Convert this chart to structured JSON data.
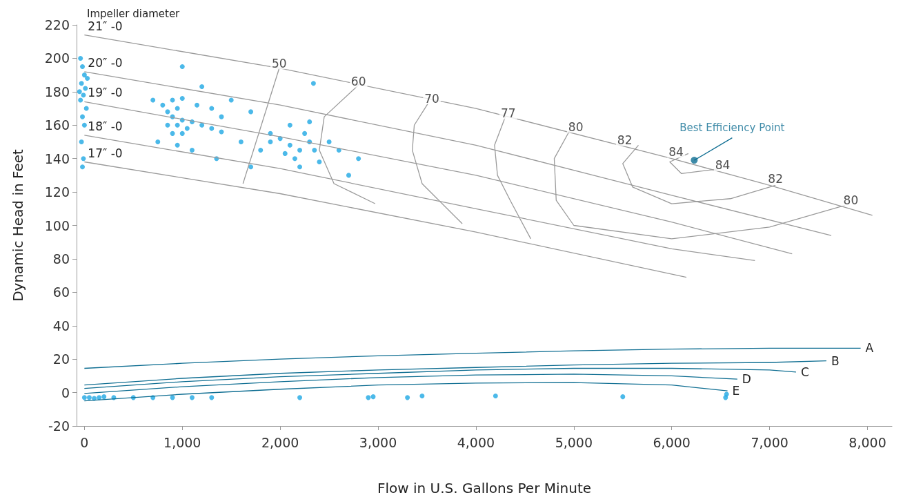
{
  "chart_data": {
    "type": "line",
    "xlabel": "Flow in U.S. Gallons Per Minute",
    "ylabel": "Dynamic Head in Feet",
    "xlim": [
      -80,
      8250
    ],
    "ylim": [
      -20,
      220
    ],
    "xticks": [
      0,
      {
        "value": 1000,
        "label": "1,000"
      },
      {
        "value": 2000,
        "label": "2,000"
      },
      {
        "value": 3000,
        "label": "3,000"
      },
      {
        "value": 4000,
        "label": "4,000"
      },
      {
        "value": 5000,
        "label": "5,000"
      },
      {
        "value": 6000,
        "label": "6,000"
      },
      {
        "value": 7000,
        "label": "7,000"
      },
      {
        "value": 8000,
        "label": "8,000"
      }
    ],
    "yticks": [
      -20,
      0,
      20,
      40,
      60,
      80,
      100,
      120,
      140,
      160,
      180,
      200,
      220
    ],
    "grid": false,
    "legend": false,
    "marker": "none",
    "series": [
      {
        "type": "scatter",
        "marker": "circle",
        "color": "#1ea7e4",
        "x": [
          -40,
          -20,
          0,
          -30,
          10,
          -10,
          -40,
          20,
          -20,
          0,
          -30,
          -10,
          -20,
          30,
          -50,
          800,
          850,
          900,
          950,
          1000,
          1050,
          900,
          850,
          950,
          1000,
          1100,
          1200,
          1300,
          1400,
          950,
          900,
          1000,
          1150,
          1300,
          1500,
          1600,
          700,
          750,
          1100,
          1350,
          1400,
          1700,
          1900,
          1000,
          1800,
          1200,
          1900,
          2000,
          2100,
          2200,
          2300,
          2150,
          2050,
          2250,
          2350,
          2400,
          2100,
          2200,
          2500,
          2600,
          2800,
          2700,
          1700,
          2300,
          2340,
          0,
          50,
          100,
          150,
          200,
          300,
          500,
          700,
          900,
          1100,
          1300,
          2200,
          2900,
          2950,
          3300,
          3450,
          4200,
          5500,
          6550,
          6560
        ],
        "values": [
          200,
          195,
          190,
          185,
          182,
          178,
          175,
          170,
          165,
          160,
          150,
          140,
          135,
          188,
          180,
          172,
          168,
          165,
          160,
          163,
          158,
          155,
          160,
          170,
          155,
          162,
          160,
          158,
          156,
          148,
          175,
          176,
          172,
          170,
          175,
          150,
          175,
          150,
          145,
          140,
          165,
          168,
          155,
          195,
          145,
          183,
          150,
          152,
          148,
          145,
          150,
          140,
          143,
          155,
          145,
          138,
          160,
          135,
          150,
          145,
          140,
          130,
          135,
          162,
          185,
          -3,
          -3,
          -3.5,
          -3,
          -2.5,
          -3,
          -3,
          -3,
          -3,
          -3,
          -3,
          -3,
          -3,
          -2.5,
          -3,
          -2,
          -2,
          -2.5,
          -3,
          -1
        ]
      },
      {
        "name": "21″ -0",
        "color": "#9a9a9a",
        "x": [
          0,
          2000,
          4000,
          6000,
          7000,
          8050
        ],
        "values": [
          214,
          194,
          170,
          140,
          124,
          106
        ]
      },
      {
        "name": "20″ -0",
        "color": "#9a9a9a",
        "x": [
          0,
          2000,
          4000,
          6000,
          7630
        ],
        "values": [
          192,
          172,
          148,
          118,
          94
        ]
      },
      {
        "name": "19″ -0",
        "color": "#9a9a9a",
        "x": [
          0,
          2000,
          4000,
          6000,
          7230
        ],
        "values": [
          174,
          153,
          130,
          102,
          83
        ]
      },
      {
        "name": "18″ -0",
        "color": "#9a9a9a",
        "x": [
          0,
          2000,
          4000,
          6000,
          6850
        ],
        "values": [
          154,
          134,
          110,
          86,
          79
        ]
      },
      {
        "name": "17″ -0",
        "color": "#9a9a9a",
        "x": [
          0,
          2000,
          4000,
          6150
        ],
        "values": [
          138,
          119,
          96,
          69
        ]
      },
      {
        "color": "#9a9a9a",
        "x": [
          1990,
          1620
        ],
        "values": [
          194,
          125
        ]
      },
      {
        "color": "#9a9a9a",
        "x": [
          2800,
          2450,
          2400,
          2550,
          2970
        ],
        "values": [
          184,
          165,
          145,
          125,
          113
        ]
      },
      {
        "color": "#9a9a9a",
        "x": [
          3510,
          3370,
          3350,
          3450,
          3860
        ],
        "values": [
          173,
          160,
          145,
          125,
          101
        ]
      },
      {
        "color": "#9a9a9a",
        "x": [
          4300,
          4190,
          4220,
          4350,
          4560
        ],
        "values": [
          165,
          148,
          130,
          115,
          92
        ]
      },
      {
        "color": "#9a9a9a",
        "x": [
          4960,
          4800,
          4820,
          5000,
          6000,
          7000,
          7770
        ],
        "values": [
          157,
          140,
          115,
          100,
          92,
          99,
          112
        ]
      },
      {
        "color": "#9a9a9a",
        "x": [
          5660,
          5500,
          5600,
          6000,
          6600,
          7060
        ],
        "values": [
          148,
          137,
          123,
          113,
          116,
          124
        ]
      },
      {
        "color": "#9a9a9a",
        "x": [
          6170,
          5980,
          6100,
          6510
        ],
        "values": [
          143,
          138,
          131,
          134
        ]
      },
      {
        "name": "A",
        "color": "#0f6e92",
        "x": [
          7930,
          7000,
          6000,
          5000,
          4000,
          3000,
          2000,
          1000,
          0
        ],
        "values": [
          26.5,
          26.5,
          26,
          25,
          23.5,
          22,
          20,
          17.5,
          14.5
        ]
      },
      {
        "name": "B",
        "color": "#0f6e92",
        "x": [
          7580,
          7000,
          6000,
          5000,
          4000,
          3000,
          2000,
          1000,
          0
        ],
        "values": [
          19,
          18,
          17.5,
          16.5,
          15,
          13.5,
          11.5,
          8.5,
          4.5
        ]
      },
      {
        "name": "C",
        "color": "#0f6e92",
        "x": [
          7270,
          7000,
          6000,
          5000,
          4000,
          3000,
          2000,
          1000,
          0
        ],
        "values": [
          12.3,
          13.5,
          14.5,
          14.5,
          13.5,
          11.5,
          9.5,
          6.5,
          2.5
        ]
      },
      {
        "name": "D",
        "color": "#0f6e92",
        "x": [
          6670,
          6000,
          5000,
          4000,
          3000,
          2000,
          1000,
          0
        ],
        "values": [
          8,
          10,
          11,
          10.5,
          9,
          6.5,
          3.5,
          -0.5
        ]
      },
      {
        "name": "E",
        "color": "#0f6e92",
        "x": [
          6570,
          6000,
          5000,
          4000,
          3000,
          2000,
          1000,
          0
        ],
        "values": [
          1,
          4.5,
          6,
          5.7,
          4.5,
          2,
          -1,
          -5
        ]
      },
      {
        "type": "scatter",
        "marker": "circle",
        "color": "#0f6e92",
        "x": [
          6230
        ],
        "values": [
          139
        ]
      }
    ],
    "annotations": [
      "Impeller diameter",
      {
        "text": "50",
        "x": 1990,
        "y": 197
      },
      {
        "text": "60",
        "x": 2800,
        "y": 186
      },
      {
        "text": "70",
        "x": 3550,
        "y": 176
      },
      {
        "text": "77",
        "x": 4330,
        "y": 167
      },
      {
        "text": "80",
        "x": 5020,
        "y": 159
      },
      {
        "text": "82",
        "x": 5520,
        "y": 151
      },
      {
        "text": "84",
        "x": 6045,
        "y": 144
      },
      {
        "text": "84",
        "x": 6520,
        "y": 136
      },
      {
        "text": "82",
        "x": 7060,
        "y": 128
      },
      {
        "text": "80",
        "x": 7830,
        "y": 115
      },
      {
        "text": "Best Efficiency Point",
        "x": 6230,
        "y": 139
      }
    ]
  }
}
